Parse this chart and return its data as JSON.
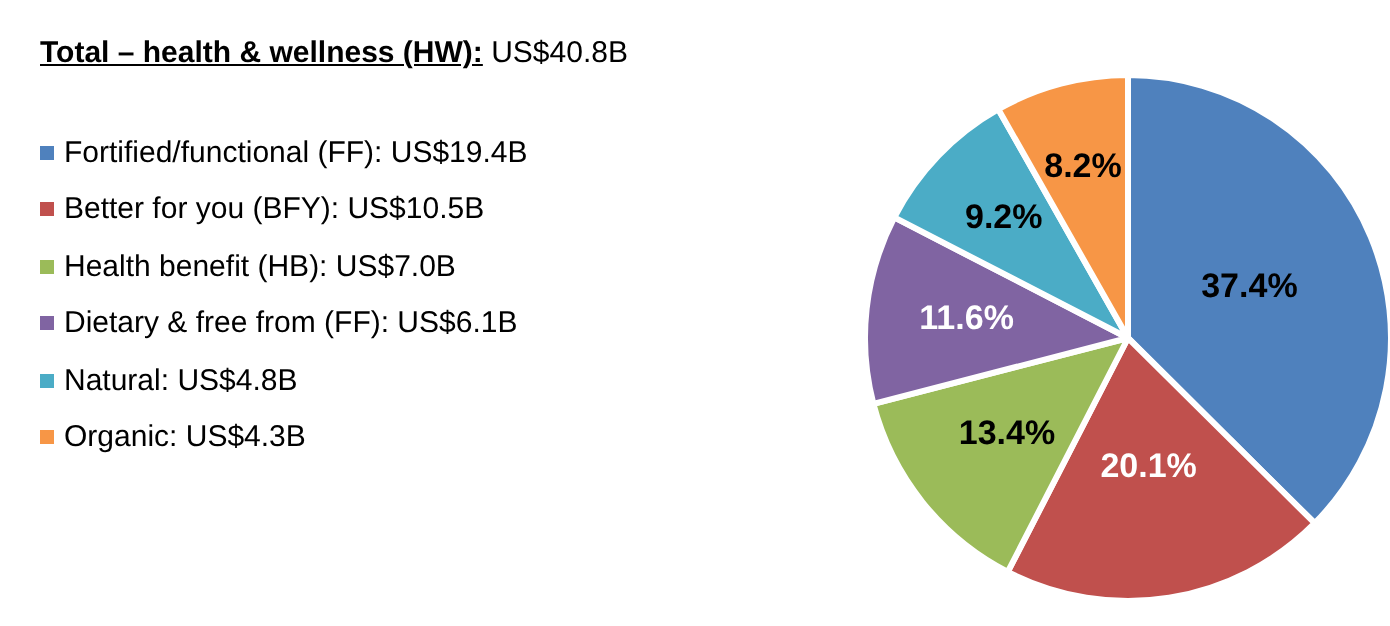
{
  "chart_data": {
    "type": "pie",
    "title": "Total – health & wellness (HW): US$40.8B",
    "legend": "left",
    "categories": [
      "Fortified/functional (FF): US$19.4B",
      "Better for you (BFY): US$10.5B",
      "Health benefit (HB): US$7.0B",
      "Dietary & free from (FF): US$6.1B",
      "Natural: US$4.8B",
      "Organic: US$4.3B"
    ],
    "values": [
      37.4,
      20.1,
      13.4,
      11.6,
      9.2,
      8.2
    ],
    "value_labels": [
      "37.4%",
      "20.1%",
      "13.4%",
      "11.6%",
      "9.2%",
      "8.2%"
    ],
    "colors": [
      "#4f81bd",
      "#c0504d",
      "#9bbb59",
      "#8064a2",
      "#4bacc6",
      "#f79646"
    ]
  }
}
